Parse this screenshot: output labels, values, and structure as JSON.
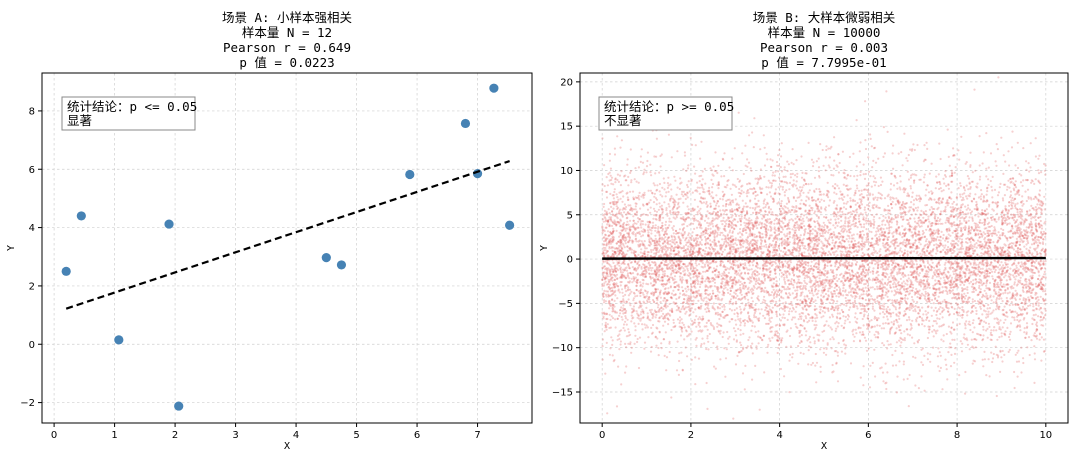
{
  "chart_data": [
    {
      "type": "scatter",
      "title_lines": [
        "场景 A: 小样本强相关",
        "样本量 N = 12",
        "Pearson r = 0.649",
        "p 值 = 0.0223"
      ],
      "xlabel": "X",
      "ylabel": "Y",
      "xlim": [
        -0.2,
        7.9
      ],
      "ylim": [
        -2.7,
        9.3
      ],
      "xticks": [
        0,
        1,
        2,
        3,
        4,
        5,
        6,
        7
      ],
      "yticks": [
        -2,
        0,
        2,
        4,
        6,
        8
      ],
      "grid": true,
      "annotation_lines": [
        "统计结论：p <= 0.05",
        "显著"
      ],
      "annotation_position": "top-left",
      "points": {
        "color": "#4682b4",
        "x": [
          0.2,
          0.45,
          1.07,
          1.9,
          2.06,
          4.5,
          4.75,
          5.88,
          6.8,
          7.0,
          7.27,
          7.53
        ],
        "y": [
          2.5,
          4.4,
          0.15,
          4.12,
          -2.12,
          2.97,
          2.72,
          5.82,
          7.57,
          5.85,
          8.78,
          4.08
        ]
      },
      "fit_line": {
        "color": "#000000",
        "style": "dashed",
        "x": [
          0.2,
          7.53
        ],
        "y": [
          1.22,
          6.28
        ]
      }
    },
    {
      "type": "scatter",
      "title_lines": [
        "场景 B: 大样本微弱相关",
        "样本量 N = 10000",
        "Pearson r = 0.003",
        "p 值 = 7.7995e-01"
      ],
      "xlabel": "X",
      "ylabel": "Y",
      "xlim": [
        -0.5,
        10.5
      ],
      "ylim": [
        -18.5,
        21
      ],
      "xticks": [
        0,
        2,
        4,
        6,
        8,
        10
      ],
      "yticks": [
        -15,
        -10,
        -5,
        0,
        5,
        10,
        15,
        20
      ],
      "grid": true,
      "annotation_lines": [
        "统计结论：p >= 0.05",
        "不显著"
      ],
      "annotation_position": "top-left",
      "points": {
        "color": "#e05555",
        "count": 10000,
        "x_range": [
          0,
          10
        ],
        "y_mean": 0,
        "y_std": 5
      },
      "fit_line": {
        "color": "#000000",
        "style": "solid",
        "x": [
          0,
          10
        ],
        "y": [
          0.05,
          0.12
        ]
      }
    }
  ]
}
